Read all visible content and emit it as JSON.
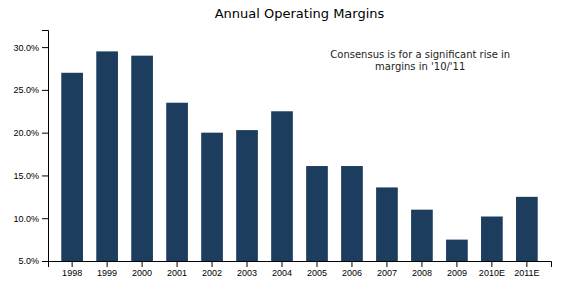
{
  "chart_data": {
    "type": "bar",
    "title": "Annual Operating Margins",
    "categories": [
      "1998",
      "1999",
      "2000",
      "2001",
      "2002",
      "2003",
      "2004",
      "2005",
      "2006",
      "2007",
      "2008",
      "2009",
      "2010E",
      "2011E"
    ],
    "values": [
      0.27,
      0.295,
      0.29,
      0.235,
      0.2,
      0.203,
      0.225,
      0.161,
      0.161,
      0.136,
      0.11,
      0.075,
      0.102,
      0.125
    ],
    "color": "#1c3d5e",
    "ylim": [
      0.05,
      0.32
    ],
    "yticks": [
      {
        "value": 0.05,
        "label": "5.0%"
      },
      {
        "value": 0.1,
        "label": "10.0%"
      },
      {
        "value": 0.15,
        "label": "15.0%"
      },
      {
        "value": 0.2,
        "label": "20.0%"
      },
      {
        "value": 0.25,
        "label": "25.0%"
      },
      {
        "value": 0.3,
        "label": "30.0%"
      }
    ],
    "grid": false,
    "annotation": "Consensus is for a significant rise in\nmargins in '10/'11"
  }
}
